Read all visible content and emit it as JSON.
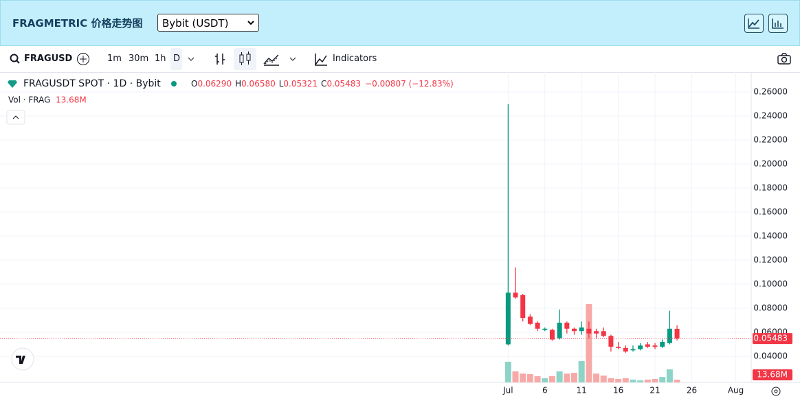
{
  "header": {
    "title": "FRAGMETRIC 价格走势图",
    "exchange": "Bybit (USDT)"
  },
  "toolbar": {
    "symbol": "FRAGUSD",
    "intervals": [
      "1m",
      "30m",
      "1h",
      "D"
    ],
    "indicators": "Indicators"
  },
  "legend": {
    "symbol": "FRAGUSDT SPOT · 1D · Bybit",
    "open_label": "O",
    "open": "0.06290",
    "high_label": "H",
    "high": "0.06580",
    "low_label": "L",
    "low": "0.05321",
    "close_label": "C",
    "close": "0.05483",
    "change": "−0.00807 (−12.83%)",
    "volume_label": "Vol · FRAG",
    "volume": "13.68M"
  },
  "chart_data": {
    "type": "candlestick",
    "x": [
      1,
      2,
      3,
      4,
      5,
      6,
      7,
      8,
      9,
      10,
      11,
      12,
      13,
      14,
      15,
      16,
      17,
      18,
      19,
      20,
      21,
      22,
      23,
      24
    ],
    "open": [
      0.05,
      0.093,
      0.091,
      0.073,
      0.068,
      0.062,
      0.062,
      0.055,
      0.068,
      0.063,
      0.061,
      0.063,
      0.061,
      0.061,
      0.057,
      0.048,
      0.047,
      0.045,
      0.046,
      0.05,
      0.049,
      0.048,
      0.051,
      0.0629
    ],
    "high": [
      0.25,
      0.114,
      0.092,
      0.075,
      0.069,
      0.064,
      0.063,
      0.079,
      0.069,
      0.064,
      0.069,
      0.069,
      0.063,
      0.064,
      0.058,
      0.052,
      0.049,
      0.049,
      0.051,
      0.052,
      0.051,
      0.054,
      0.078,
      0.0658
    ],
    "low": [
      0.049,
      0.088,
      0.069,
      0.066,
      0.061,
      0.061,
      0.053,
      0.054,
      0.059,
      0.058,
      0.058,
      0.055,
      0.055,
      0.056,
      0.044,
      0.046,
      0.043,
      0.044,
      0.045,
      0.047,
      0.046,
      0.047,
      0.05,
      0.05321
    ],
    "close": [
      0.093,
      0.089,
      0.072,
      0.067,
      0.063,
      0.063,
      0.054,
      0.068,
      0.063,
      0.061,
      0.064,
      0.059,
      0.059,
      0.057,
      0.048,
      0.047,
      0.044,
      0.046,
      0.049,
      0.048,
      0.048,
      0.052,
      0.063,
      0.05483
    ],
    "volume": [
      103,
      55,
      44,
      41,
      31,
      21,
      31,
      55,
      44,
      48,
      106,
      390,
      44,
      34,
      21,
      17,
      21,
      14,
      10,
      14,
      17,
      27,
      65,
      13.68
    ],
    "volume_ylim": [
      0,
      520
    ],
    "up_color": "#089981",
    "down_color": "#f23645",
    "volume_up_color": "#8ed3c7",
    "volume_down_color": "#f7a9a7",
    "xlim": [
      -68.2,
      34.1
    ],
    "xticks": [
      {
        "value": 1,
        "label": "Jul"
      },
      6,
      11,
      16,
      21,
      26,
      {
        "value": 32,
        "label": "Aug"
      }
    ],
    "ylim": [
      0.0183,
      0.2766
    ],
    "yticks": [
      {
        "value": 0.04,
        "label": "0.04000"
      },
      {
        "value": 0.06,
        "label": "0.06000"
      },
      {
        "value": 0.08,
        "label": "0.08000"
      },
      {
        "value": 0.1,
        "label": "0.10000"
      },
      {
        "value": 0.12,
        "label": "0.12000"
      },
      {
        "value": 0.14,
        "label": "0.14000"
      },
      {
        "value": 0.16,
        "label": "0.16000"
      },
      {
        "value": 0.18,
        "label": "0.18000"
      },
      {
        "value": 0.2,
        "label": "0.20000"
      },
      {
        "value": 0.22,
        "label": "0.22000"
      },
      {
        "value": 0.24,
        "label": "0.24000"
      },
      {
        "value": 0.26,
        "label": "0.26000"
      }
    ],
    "grid": true,
    "last_price_line": true
  }
}
